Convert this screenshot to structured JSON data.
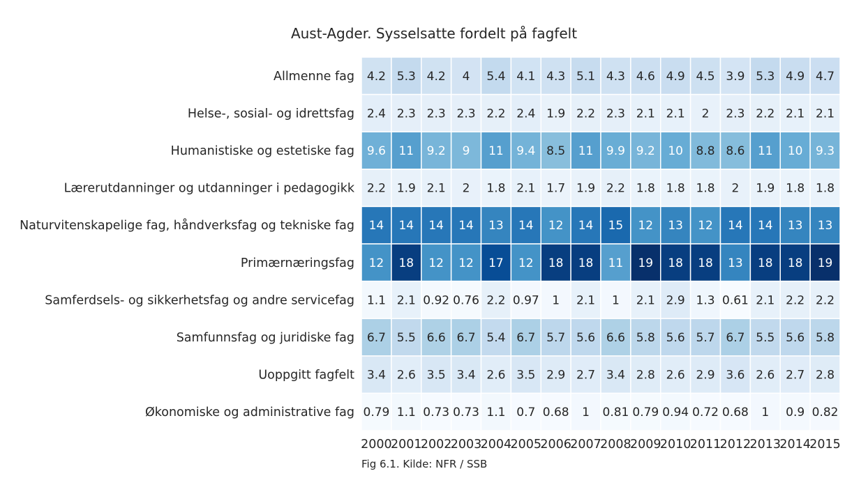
{
  "chart_data": {
    "type": "heatmap",
    "title": "Aust-Agder. Sysselsatte fordelt på fagfelt",
    "caption": "Fig 6.1. Kilde: NFR / SSB",
    "x": [
      "2000",
      "2001",
      "2002",
      "2003",
      "2004",
      "2005",
      "2006",
      "2007",
      "2008",
      "2009",
      "2010",
      "2011",
      "2012",
      "2013",
      "2014",
      "2015"
    ],
    "y": [
      "Allmenne fag",
      "Helse-, sosial- og idrettsfag",
      "Humanistiske og estetiske fag",
      "Lærerutdanninger og utdanninger i pedagogikk",
      "Naturvitenskapelige fag, håndverksfag og tekniske fag",
      "Primærnæringsfag",
      "Samferdsels- og sikkerhetsfag og andre servicefag",
      "Samfunnsfag og juridiske fag",
      "Uoppgitt fagfelt",
      "Økonomiske og administrative fag"
    ],
    "values": [
      [
        "4.2",
        "5.3",
        "4.2",
        "4",
        "5.4",
        "4.1",
        "4.3",
        "5.1",
        "4.3",
        "4.6",
        "4.9",
        "4.5",
        "3.9",
        "5.3",
        "4.9",
        "4.7"
      ],
      [
        "2.4",
        "2.3",
        "2.3",
        "2.3",
        "2.2",
        "2.4",
        "1.9",
        "2.2",
        "2.3",
        "2.1",
        "2.1",
        "2",
        "2.3",
        "2.2",
        "2.1",
        "2.1"
      ],
      [
        "9.6",
        "11",
        "9.2",
        "9",
        "11",
        "9.4",
        "8.5",
        "11",
        "9.9",
        "9.2",
        "10",
        "8.8",
        "8.6",
        "11",
        "10",
        "9.3"
      ],
      [
        "2.2",
        "1.9",
        "2.1",
        "2",
        "1.8",
        "2.1",
        "1.7",
        "1.9",
        "2.2",
        "1.8",
        "1.8",
        "1.8",
        "2",
        "1.9",
        "1.8",
        "1.8"
      ],
      [
        "14",
        "14",
        "14",
        "14",
        "13",
        "14",
        "12",
        "14",
        "15",
        "12",
        "13",
        "12",
        "14",
        "14",
        "13",
        "13"
      ],
      [
        "12",
        "18",
        "12",
        "12",
        "17",
        "12",
        "18",
        "18",
        "11",
        "19",
        "18",
        "18",
        "13",
        "18",
        "18",
        "19"
      ],
      [
        "1.1",
        "2.1",
        "0.92",
        "0.76",
        "2.2",
        "0.97",
        "1",
        "2.1",
        "1",
        "2.1",
        "2.9",
        "1.3",
        "0.61",
        "2.1",
        "2.2",
        "2.2"
      ],
      [
        "6.7",
        "5.5",
        "6.6",
        "6.7",
        "5.4",
        "6.7",
        "5.7",
        "5.6",
        "6.6",
        "5.8",
        "5.6",
        "5.7",
        "6.7",
        "5.5",
        "5.6",
        "5.8"
      ],
      [
        "3.4",
        "2.6",
        "3.5",
        "3.4",
        "2.6",
        "3.5",
        "2.9",
        "2.7",
        "3.4",
        "2.8",
        "2.6",
        "2.9",
        "3.6",
        "2.6",
        "2.7",
        "2.8"
      ],
      [
        "0.79",
        "1.1",
        "0.73",
        "0.73",
        "1.1",
        "0.7",
        "0.68",
        "1",
        "0.81",
        "0.79",
        "0.94",
        "0.72",
        "0.68",
        "1",
        "0.9",
        "0.82"
      ]
    ],
    "colormap": "Blues",
    "value_range": [
      0.6,
      19
    ],
    "legend": "none",
    "grid": false
  }
}
